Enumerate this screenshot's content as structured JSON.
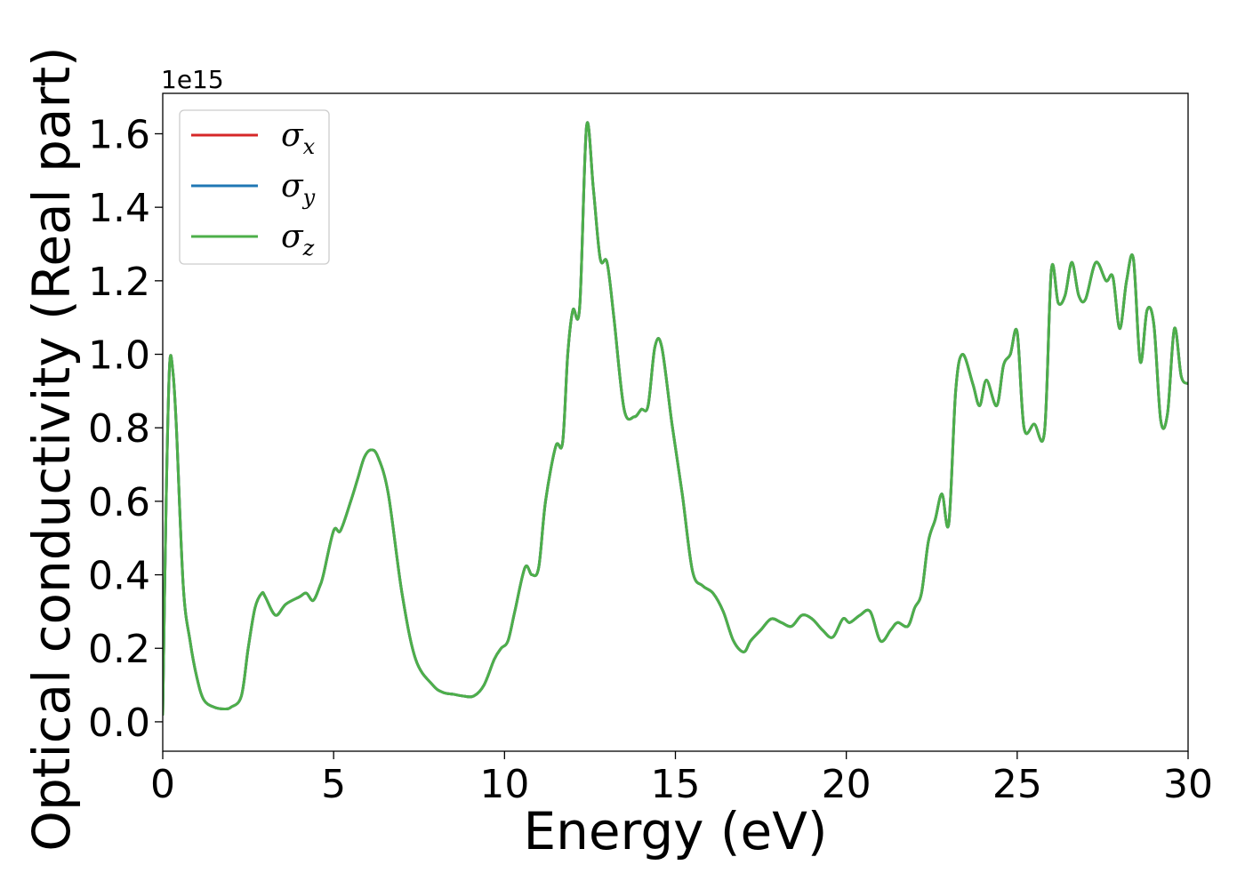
{
  "chart_data": {
    "type": "line",
    "xlabel": "Energy (eV)",
    "ylabel": "Optical conductivity (Real part)",
    "y_offset_label": "1e15",
    "xlim": [
      0,
      30
    ],
    "ylim": [
      -0.08,
      1.71
    ],
    "x_ticks": [
      0,
      5,
      10,
      15,
      20,
      25,
      30
    ],
    "x_tick_labels": [
      "0",
      "5",
      "10",
      "15",
      "20",
      "25",
      "30"
    ],
    "y_ticks": [
      0.0,
      0.2,
      0.4,
      0.6,
      0.8,
      1.0,
      1.2,
      1.4,
      1.6
    ],
    "y_tick_labels": [
      "0.0",
      "0.2",
      "0.4",
      "0.6",
      "0.8",
      "1.0",
      "1.2",
      "1.4",
      "1.6"
    ],
    "grid": false,
    "legend_position": "top-left",
    "legend": [
      {
        "symbol": "σ",
        "sub": "x",
        "color": "#d62728"
      },
      {
        "symbol": "σ",
        "sub": "y",
        "color": "#1f77b4"
      },
      {
        "symbol": "σ",
        "sub": "z",
        "color": "#4daf4a"
      }
    ],
    "x": [
      0,
      0.1,
      0.2,
      0.3,
      0.4,
      0.6,
      0.8,
      1.0,
      1.2,
      1.5,
      1.8,
      2.0,
      2.3,
      2.5,
      2.7,
      2.9,
      3.0,
      3.3,
      3.6,
      4.0,
      4.2,
      4.4,
      4.6,
      4.7,
      5.0,
      5.2,
      5.5,
      5.7,
      5.9,
      6.1,
      6.3,
      6.6,
      7.0,
      7.4,
      7.9,
      8.2,
      8.5,
      8.8,
      9.1,
      9.4,
      9.7,
      9.9,
      10.1,
      10.3,
      10.6,
      10.8,
      11.0,
      11.2,
      11.5,
      11.7,
      11.85,
      12.0,
      12.2,
      12.4,
      12.6,
      12.8,
      13.0,
      13.2,
      13.5,
      13.8,
      14.0,
      14.2,
      14.4,
      14.6,
      14.9,
      15.2,
      15.5,
      15.8,
      16.1,
      16.4,
      16.7,
      17.0,
      17.2,
      17.5,
      17.8,
      18.1,
      18.4,
      18.7,
      19.0,
      19.3,
      19.6,
      19.9,
      20.1,
      20.4,
      20.7,
      21.0,
      21.3,
      21.5,
      21.8,
      22.0,
      22.2,
      22.4,
      22.6,
      22.8,
      23.0,
      23.2,
      23.4,
      23.7,
      23.9,
      24.1,
      24.4,
      24.6,
      24.8,
      25.0,
      25.2,
      25.5,
      25.8,
      26.0,
      26.2,
      26.4,
      26.6,
      26.8,
      27.0,
      27.3,
      27.6,
      27.8,
      28.0,
      28.2,
      28.4,
      28.6,
      28.8,
      29.0,
      29.2,
      29.4,
      29.6,
      29.8,
      30.0
    ],
    "series": [
      {
        "name": "σx",
        "color": "#d62728",
        "values": [
          0.02,
          0.6,
          0.97,
          0.95,
          0.8,
          0.37,
          0.22,
          0.12,
          0.06,
          0.04,
          0.035,
          0.04,
          0.07,
          0.2,
          0.31,
          0.35,
          0.34,
          0.29,
          0.32,
          0.34,
          0.35,
          0.33,
          0.37,
          0.4,
          0.52,
          0.52,
          0.6,
          0.66,
          0.72,
          0.74,
          0.72,
          0.62,
          0.35,
          0.17,
          0.1,
          0.08,
          0.075,
          0.07,
          0.07,
          0.1,
          0.17,
          0.2,
          0.22,
          0.3,
          0.42,
          0.4,
          0.42,
          0.6,
          0.75,
          0.76,
          1.0,
          1.12,
          1.13,
          1.62,
          1.45,
          1.26,
          1.25,
          1.1,
          0.85,
          0.83,
          0.85,
          0.86,
          1.02,
          1.02,
          0.81,
          0.62,
          0.41,
          0.37,
          0.35,
          0.3,
          0.22,
          0.19,
          0.22,
          0.25,
          0.28,
          0.27,
          0.26,
          0.29,
          0.28,
          0.25,
          0.23,
          0.28,
          0.27,
          0.29,
          0.3,
          0.22,
          0.25,
          0.27,
          0.26,
          0.31,
          0.35,
          0.49,
          0.55,
          0.62,
          0.54,
          0.9,
          1.0,
          0.92,
          0.86,
          0.93,
          0.86,
          0.97,
          1.0,
          1.06,
          0.8,
          0.81,
          0.79,
          1.23,
          1.14,
          1.16,
          1.25,
          1.16,
          1.15,
          1.25,
          1.2,
          1.21,
          1.07,
          1.2,
          1.26,
          0.98,
          1.12,
          1.08,
          0.82,
          0.84,
          1.07,
          0.94,
          0.92
        ]
      },
      {
        "name": "σy",
        "color": "#1f77b4",
        "values": [
          0.02,
          0.6,
          0.97,
          0.95,
          0.8,
          0.37,
          0.22,
          0.12,
          0.06,
          0.04,
          0.035,
          0.04,
          0.07,
          0.2,
          0.31,
          0.35,
          0.34,
          0.29,
          0.32,
          0.34,
          0.35,
          0.33,
          0.37,
          0.4,
          0.52,
          0.52,
          0.6,
          0.66,
          0.72,
          0.74,
          0.72,
          0.62,
          0.35,
          0.17,
          0.1,
          0.08,
          0.075,
          0.07,
          0.07,
          0.1,
          0.17,
          0.2,
          0.22,
          0.3,
          0.42,
          0.4,
          0.42,
          0.6,
          0.75,
          0.76,
          1.0,
          1.12,
          1.13,
          1.62,
          1.45,
          1.26,
          1.25,
          1.1,
          0.85,
          0.83,
          0.85,
          0.86,
          1.02,
          1.02,
          0.81,
          0.62,
          0.41,
          0.37,
          0.35,
          0.3,
          0.22,
          0.19,
          0.22,
          0.25,
          0.28,
          0.27,
          0.26,
          0.29,
          0.28,
          0.25,
          0.23,
          0.28,
          0.27,
          0.29,
          0.3,
          0.22,
          0.25,
          0.27,
          0.26,
          0.31,
          0.35,
          0.49,
          0.55,
          0.62,
          0.54,
          0.9,
          1.0,
          0.92,
          0.86,
          0.93,
          0.86,
          0.97,
          1.0,
          1.06,
          0.8,
          0.81,
          0.79,
          1.23,
          1.14,
          1.16,
          1.25,
          1.16,
          1.15,
          1.25,
          1.2,
          1.21,
          1.07,
          1.2,
          1.26,
          0.98,
          1.12,
          1.08,
          0.82,
          0.84,
          1.07,
          0.94,
          0.92
        ]
      },
      {
        "name": "σz",
        "color": "#4daf4a",
        "values": [
          0.02,
          0.6,
          0.97,
          0.95,
          0.8,
          0.37,
          0.22,
          0.12,
          0.06,
          0.04,
          0.035,
          0.04,
          0.07,
          0.2,
          0.31,
          0.35,
          0.34,
          0.29,
          0.32,
          0.34,
          0.35,
          0.33,
          0.37,
          0.4,
          0.52,
          0.52,
          0.6,
          0.66,
          0.72,
          0.74,
          0.72,
          0.62,
          0.35,
          0.17,
          0.1,
          0.08,
          0.075,
          0.07,
          0.07,
          0.1,
          0.17,
          0.2,
          0.22,
          0.3,
          0.42,
          0.4,
          0.42,
          0.6,
          0.75,
          0.76,
          1.0,
          1.12,
          1.13,
          1.62,
          1.45,
          1.26,
          1.25,
          1.1,
          0.85,
          0.83,
          0.85,
          0.86,
          1.02,
          1.02,
          0.81,
          0.62,
          0.41,
          0.37,
          0.35,
          0.3,
          0.22,
          0.19,
          0.22,
          0.25,
          0.28,
          0.27,
          0.26,
          0.29,
          0.28,
          0.25,
          0.23,
          0.28,
          0.27,
          0.29,
          0.3,
          0.22,
          0.25,
          0.27,
          0.26,
          0.31,
          0.35,
          0.49,
          0.55,
          0.62,
          0.54,
          0.9,
          1.0,
          0.92,
          0.86,
          0.93,
          0.86,
          0.97,
          1.0,
          1.06,
          0.8,
          0.81,
          0.79,
          1.23,
          1.14,
          1.16,
          1.25,
          1.16,
          1.15,
          1.25,
          1.2,
          1.21,
          1.07,
          1.2,
          1.26,
          0.98,
          1.12,
          1.08,
          0.82,
          0.84,
          1.07,
          0.94,
          0.92
        ]
      }
    ]
  }
}
